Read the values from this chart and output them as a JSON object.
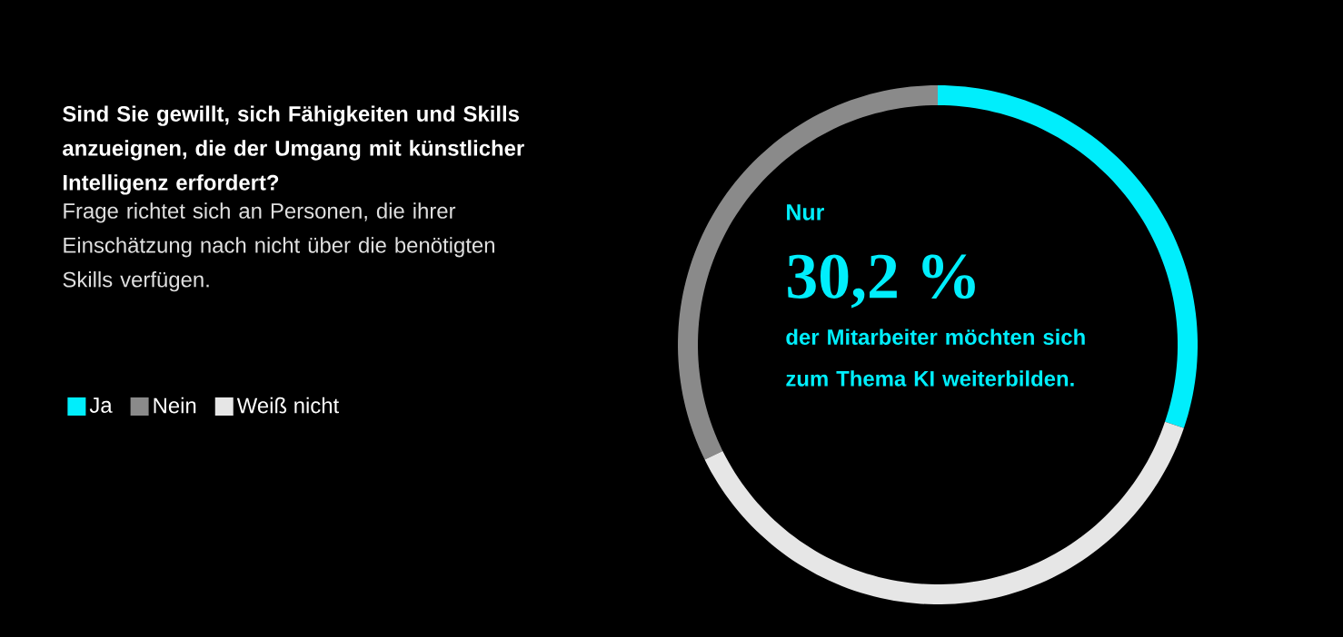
{
  "chart_data": {
    "type": "donut",
    "title": "Sind Sie gewillt, sich Fähigkeiten und Skills anzueignen, die der Umgang mit künstlicher Intelligenz erfordert?",
    "subtitle": "Frage richtet sich an Personen, die ihrer Einschätzung nach nicht über die benötigten Skills verfügen.",
    "categories": [
      "Ja",
      "Nein",
      "Weiß nicht"
    ],
    "values": [
      30.2,
      32.3,
      37.5
    ],
    "colors": [
      "#00eefc",
      "#8a8a8a",
      "#e6e6e6"
    ],
    "annotations": [
      "Nur",
      "30,2 %",
      "der Mitarbeiter möchten sich zum Thema KI weiterbilden."
    ],
    "legend": "left"
  }
}
